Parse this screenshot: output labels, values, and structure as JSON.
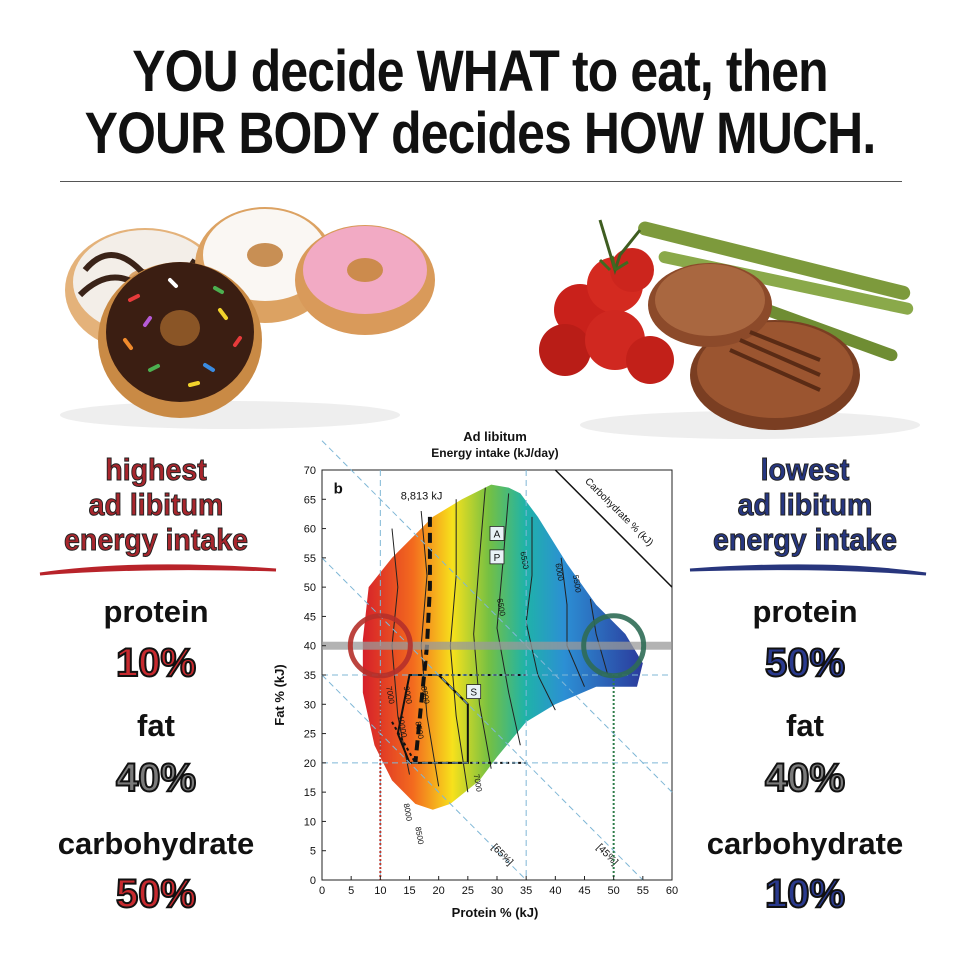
{
  "headline": {
    "line1": "YOU decide WHAT to eat, then",
    "line2": "YOUR BODY decides HOW MUCH."
  },
  "left_panel": {
    "intake_line1": "highest",
    "intake_line2": "ad libitum",
    "intake_line3": "energy intake",
    "protein_label": "protein",
    "protein_value": "10%",
    "fat_label": "fat",
    "fat_value": "40%",
    "carb_label": "carbohydrate",
    "carb_value": "50%",
    "accent_color": "#c72a2f",
    "image": "donuts"
  },
  "right_panel": {
    "intake_line1": "lowest",
    "intake_line2": "ad libitum",
    "intake_line3": "energy intake",
    "protein_label": "protein",
    "protein_value": "50%",
    "fat_label": "fat",
    "fat_value": "40%",
    "carb_label": "carbohydrate",
    "carb_value": "10%",
    "accent_color": "#2a3a8e",
    "image": "steak-tomatoes-asparagus"
  },
  "chart_data": {
    "type": "heatmap",
    "title": "Ad libitum",
    "subtitle": "Energy intake (kJ/day)",
    "panel_label": "b",
    "xlabel": "Protein %  (kJ)",
    "ylabel": "Fat % (kJ)",
    "xlim": [
      0,
      60
    ],
    "ylim": [
      0,
      70
    ],
    "x_ticks": [
      0,
      5,
      10,
      15,
      20,
      25,
      30,
      35,
      40,
      45,
      50,
      55,
      60
    ],
    "y_ticks": [
      0,
      5,
      10,
      15,
      20,
      25,
      30,
      35,
      40,
      45,
      50,
      55,
      60,
      65,
      70
    ],
    "diagonal_axis_label": "Carbohydrate % (kJ)",
    "peak_annotation": "8,813 kJ",
    "contour_labels": [
      "6500",
      "6000",
      "5500",
      "6500",
      "7000",
      "8000",
      "8500",
      "8000",
      "7000",
      "9000",
      "10000",
      "8500"
    ],
    "boxed_labels": [
      "A",
      "P",
      "S"
    ],
    "diagonal_labels": [
      "[65%]",
      "[45%]"
    ],
    "reference_lines": {
      "fat_horizontal": 40,
      "protein_low": 10,
      "protein_high": 50,
      "fat_dashed": [
        20,
        35
      ],
      "protein_dashed": [
        10,
        35
      ]
    },
    "markers": [
      {
        "name": "high intake",
        "protein": 10,
        "fat": 40,
        "color": "#b5302a"
      },
      {
        "name": "low intake",
        "protein": 50,
        "fat": 40,
        "color": "#2f6b55"
      }
    ],
    "color_scale": {
      "low": "#2a3a9e",
      "high": "#d41f1f"
    }
  }
}
